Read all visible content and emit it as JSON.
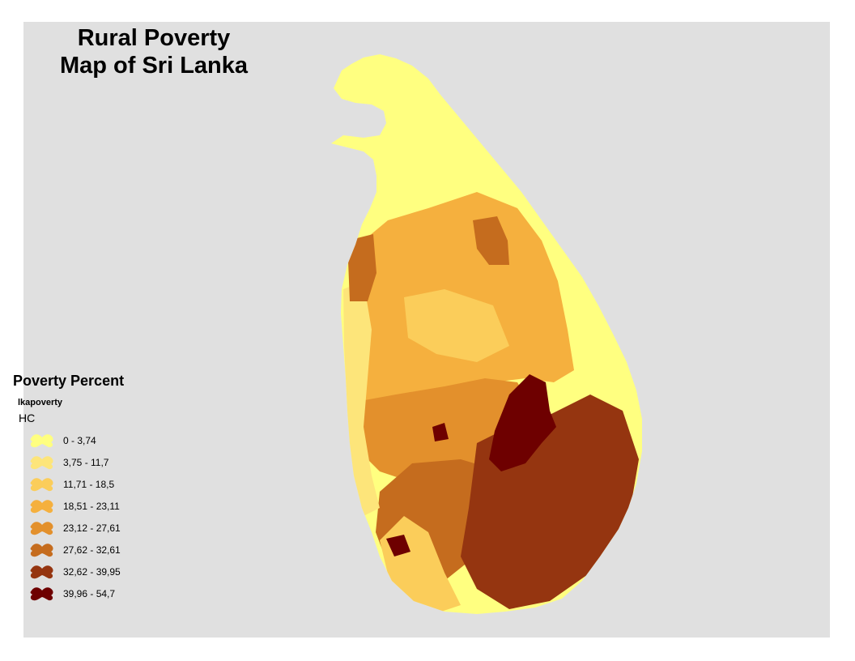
{
  "map": {
    "title_line1": "Rural Poverty",
    "title_line2": "Map of Sri Lanka",
    "background_color": "#e0e0e0",
    "land_color": "#ffff80"
  },
  "legend": {
    "heading": "Poverty Percent",
    "layer_name": "lkapoverty",
    "field_name": "HC",
    "classes": [
      {
        "label": "0 - 3,74",
        "color": "#ffff80"
      },
      {
        "label": "3,75 - 11,7",
        "color": "#fde57a"
      },
      {
        "label": "11,71 - 18,5",
        "color": "#fbcd5a"
      },
      {
        "label": "18,51 - 23,11",
        "color": "#f5b03e"
      },
      {
        "label": "23,12 - 27,61",
        "color": "#e3902c"
      },
      {
        "label": "27,62 - 32,61",
        "color": "#c56c1e"
      },
      {
        "label": "32,62 - 39,95",
        "color": "#953510"
      },
      {
        "label": "39,96 - 54,7",
        "color": "#6e0000"
      }
    ]
  }
}
